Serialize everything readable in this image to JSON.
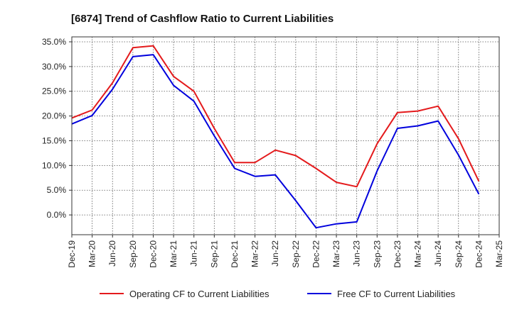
{
  "chart_data": {
    "type": "line",
    "title": "[6874]  Trend of Cashflow Ratio to Current Liabilities",
    "xlabel": "",
    "ylabel": "",
    "categories": [
      "Dec-19",
      "Mar-20",
      "Jun-20",
      "Sep-20",
      "Dec-20",
      "Mar-21",
      "Jun-21",
      "Sep-21",
      "Dec-21",
      "Mar-22",
      "Jun-22",
      "Sep-22",
      "Dec-22",
      "Mar-23",
      "Jun-23",
      "Sep-23",
      "Dec-23",
      "Mar-24",
      "Jun-24",
      "Sep-24",
      "Dec-24",
      "Mar-25"
    ],
    "y_ticks": [
      "35.0%",
      "30.0%",
      "25.0%",
      "20.0%",
      "15.0%",
      "10.0%",
      "5.0%",
      "0.0%"
    ],
    "ylim": [
      -4,
      36
    ],
    "grid": true,
    "legend_position": "bottom",
    "series": [
      {
        "name": "Operating CF to Current Liabilities",
        "color": "#e41a1c",
        "values": [
          19.6,
          21.2,
          26.7,
          33.8,
          34.2,
          28.0,
          25.0,
          17.5,
          10.6,
          10.6,
          13.1,
          12.0,
          9.4,
          6.6,
          5.7,
          14.4,
          20.7,
          21.0,
          22.0,
          15.4,
          6.8,
          null
        ]
      },
      {
        "name": "Free CF to Current Liabilities",
        "color": "#0000dd",
        "values": [
          18.4,
          20.1,
          25.4,
          32.0,
          32.4,
          26.2,
          23.0,
          16.0,
          9.4,
          7.8,
          8.1,
          2.9,
          -2.6,
          -1.8,
          -1.4,
          8.9,
          17.5,
          18.0,
          19.0,
          12.1,
          4.2,
          null
        ]
      }
    ]
  }
}
